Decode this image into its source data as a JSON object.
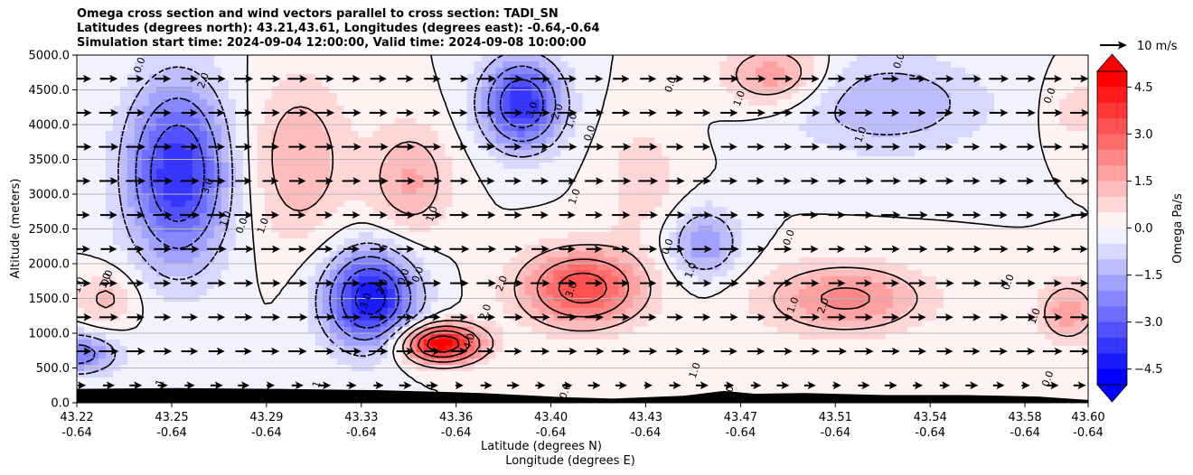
{
  "title": {
    "line1": "Omega cross section and wind vectors parallel to cross section: TADI_SN",
    "line2": "Latitudes (degrees north): 43.21,43.61, Longitudes (degrees east): -0.64,-0.64",
    "line3": "Simulation start time: 2024-09-04 12:00:00, Valid time: 2024-09-08 10:00:00"
  },
  "colors": {
    "negative_max": "#0000ff",
    "positive_max": "#ff0000",
    "neutral": "#ffffff",
    "terrain": "#000000",
    "contour": "#000000",
    "vector": "#000000"
  },
  "chart_data": {
    "type": "heatmap",
    "subtype": "contour cross-section with wind vectors",
    "xlabel_line1": "Latitude (degrees N)",
    "xlabel_line2": "Longitude (degrees E)",
    "ylabel": "Altitude (meters)",
    "ylim": [
      0,
      5000
    ],
    "y_ticks": [
      "0.0",
      "500.0",
      "1000.0",
      "1500.0",
      "2000.0",
      "2500.0",
      "3000.0",
      "3500.0",
      "4000.0",
      "4500.0",
      "5000.0"
    ],
    "y_tick_values": [
      0,
      500,
      1000,
      1500,
      2000,
      2500,
      3000,
      3500,
      4000,
      4500,
      5000
    ],
    "x_tick_fraction": [
      0,
      0.0938,
      0.1875,
      0.2813,
      0.375,
      0.4688,
      0.5625,
      0.6563,
      0.75,
      0.8438,
      0.9375,
      1.0
    ],
    "x_ticks_lat": [
      "43.22",
      "43.25",
      "43.29",
      "43.33",
      "43.36",
      "43.40",
      "43.43",
      "43.47",
      "43.51",
      "43.54",
      "43.58",
      "43.60"
    ],
    "x_ticks_lon": [
      "-0.64",
      "-0.64",
      "-0.64",
      "-0.64",
      "-0.64",
      "-0.64",
      "-0.64",
      "-0.64",
      "-0.64",
      "-0.64",
      "-0.64",
      "-0.64"
    ],
    "grid": "horizontal",
    "colorbar": {
      "label": "Omega Pa/s",
      "range": [
        -5,
        5
      ],
      "ticks": [
        "−4.5",
        "−3.0",
        "−1.5",
        "0.0",
        "1.5",
        "3.0",
        "4.5"
      ],
      "tick_values": [
        -4.5,
        -3.0,
        -1.5,
        0.0,
        1.5,
        3.0,
        4.5
      ],
      "extend": "both"
    },
    "quiver_key": "10 m/s",
    "omega_features": [
      {
        "x": 0.1,
        "z": 3300,
        "value": -4.0,
        "rx": 0.05,
        "rz": 1300
      },
      {
        "x": 0.29,
        "z": 1500,
        "value": -4.5,
        "rx": 0.045,
        "rz": 700
      },
      {
        "x": 0.44,
        "z": 4300,
        "value": -4.0,
        "rx": 0.04,
        "rz": 650
      },
      {
        "x": 0.0,
        "z": 700,
        "value": -2.5,
        "rx": 0.04,
        "rz": 300
      },
      {
        "x": 0.62,
        "z": 2300,
        "value": -2.0,
        "rx": 0.035,
        "rz": 500
      },
      {
        "x": 0.8,
        "z": 4300,
        "value": -1.5,
        "rx": 0.1,
        "rz": 700
      },
      {
        "x": 0.36,
        "z": 850,
        "value": 5.0,
        "rx": 0.04,
        "rz": 280
      },
      {
        "x": 0.5,
        "z": 1650,
        "value": 3.5,
        "rx": 0.06,
        "rz": 550
      },
      {
        "x": 0.76,
        "z": 1500,
        "value": 2.2,
        "rx": 0.08,
        "rz": 500
      },
      {
        "x": 0.98,
        "z": 1300,
        "value": 1.8,
        "rx": 0.03,
        "rz": 450
      },
      {
        "x": 0.69,
        "z": 4700,
        "value": 2.0,
        "rx": 0.05,
        "rz": 450
      },
      {
        "x": 0.22,
        "z": 3500,
        "value": 1.5,
        "rx": 0.05,
        "rz": 1200
      },
      {
        "x": 0.33,
        "z": 3200,
        "value": 1.6,
        "rx": 0.04,
        "rz": 800
      },
      {
        "x": 0.56,
        "z": 3200,
        "value": 0.8,
        "rx": 0.04,
        "rz": 900
      },
      {
        "x": 0.03,
        "z": 1500,
        "value": 1.2,
        "rx": 0.03,
        "rz": 400
      },
      {
        "x": 0.99,
        "z": 4200,
        "value": 0.8,
        "rx": 0.03,
        "rz": 500
      }
    ],
    "terrain_height": [
      {
        "x": 0.0,
        "z": 200
      },
      {
        "x": 0.1,
        "z": 210
      },
      {
        "x": 0.2,
        "z": 200
      },
      {
        "x": 0.3,
        "z": 180
      },
      {
        "x": 0.4,
        "z": 140
      },
      {
        "x": 0.48,
        "z": 80
      },
      {
        "x": 0.53,
        "z": 60
      },
      {
        "x": 0.6,
        "z": 100
      },
      {
        "x": 0.64,
        "z": 170
      },
      {
        "x": 0.67,
        "z": 130
      },
      {
        "x": 0.72,
        "z": 140
      },
      {
        "x": 0.8,
        "z": 110
      },
      {
        "x": 0.88,
        "z": 110
      },
      {
        "x": 0.95,
        "z": 90
      },
      {
        "x": 1.0,
        "z": 40
      }
    ],
    "contour_labels": [
      {
        "x": 0.065,
        "z": 4840,
        "text": "0.0"
      },
      {
        "x": 0.128,
        "z": 4620,
        "text": "2.0"
      },
      {
        "x": 0.132,
        "z": 3100,
        "text": "3.0"
      },
      {
        "x": 0.15,
        "z": 2630,
        "text": "1.0"
      },
      {
        "x": 0.166,
        "z": 2530,
        "text": "0.0"
      },
      {
        "x": 0.187,
        "z": 2530,
        "text": "1.0"
      },
      {
        "x": 0.031,
        "z": 1740,
        "text": "1.0"
      },
      {
        "x": 0.033,
        "z": 1780,
        "text": "0.0"
      },
      {
        "x": 0.005,
        "z": 1680,
        "text": "1.0"
      },
      {
        "x": 0.289,
        "z": 1450,
        "text": "3.0"
      },
      {
        "x": 0.305,
        "z": 1650,
        "text": "2.0"
      },
      {
        "x": 0.326,
        "z": 1800,
        "text": "0.0"
      },
      {
        "x": 0.34,
        "z": 1830,
        "text": "0.0"
      },
      {
        "x": 0.354,
        "z": 2700,
        "text": "1.0"
      },
      {
        "x": 0.423,
        "z": 1700,
        "text": "2.0"
      },
      {
        "x": 0.407,
        "z": 1290,
        "text": "2.0"
      },
      {
        "x": 0.391,
        "z": 870,
        "text": "4.0"
      },
      {
        "x": 0.453,
        "z": 4200,
        "text": "3.0"
      },
      {
        "x": 0.478,
        "z": 4170,
        "text": "2.0"
      },
      {
        "x": 0.492,
        "z": 4040,
        "text": "1.0"
      },
      {
        "x": 0.51,
        "z": 3860,
        "text": "0.0"
      },
      {
        "x": 0.495,
        "z": 2950,
        "text": "1.0"
      },
      {
        "x": 0.492,
        "z": 1610,
        "text": "3.0"
      },
      {
        "x": 0.59,
        "z": 4560,
        "text": "0.0"
      },
      {
        "x": 0.658,
        "z": 4360,
        "text": "1.0"
      },
      {
        "x": 0.587,
        "z": 2230,
        "text": "0.0"
      },
      {
        "x": 0.61,
        "z": 1890,
        "text": "1.0"
      },
      {
        "x": 0.707,
        "z": 2360,
        "text": "0.0"
      },
      {
        "x": 0.711,
        "z": 1390,
        "text": "1.0"
      },
      {
        "x": 0.741,
        "z": 1380,
        "text": "2.0"
      },
      {
        "x": 0.778,
        "z": 3840,
        "text": "1.0"
      },
      {
        "x": 0.816,
        "z": 4900,
        "text": "0.0"
      },
      {
        "x": 0.965,
        "z": 4400,
        "text": "0.0"
      },
      {
        "x": 0.924,
        "z": 1720,
        "text": "0.0"
      },
      {
        "x": 0.95,
        "z": 1230,
        "text": "1.0"
      },
      {
        "x": 0.614,
        "z": 450,
        "text": "1.0"
      },
      {
        "x": 0.486,
        "z": 150,
        "text": "0.0"
      },
      {
        "x": 0.647,
        "z": 120,
        "text": "0.0"
      },
      {
        "x": 0.963,
        "z": 330,
        "text": "0.0"
      },
      {
        "x": 0.085,
        "z": 270,
        "text": "1"
      },
      {
        "x": 0.24,
        "z": 250,
        "text": "1"
      }
    ]
  }
}
